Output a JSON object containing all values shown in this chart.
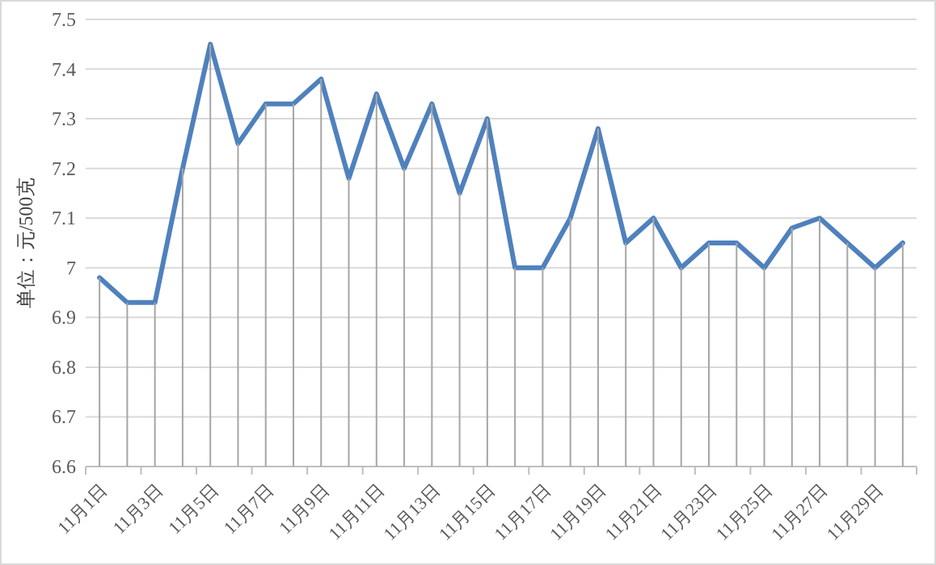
{
  "chart_data": {
    "type": "line",
    "ylabel": "单位：元/500克",
    "categories": [
      "11月1日",
      null,
      "11月3日",
      null,
      "11月5日",
      null,
      "11月7日",
      null,
      "11月9日",
      null,
      "11月11日",
      null,
      "11月13日",
      null,
      "11月15日",
      null,
      "11月17日",
      null,
      "11月19日",
      null,
      "11月21日",
      null,
      "11月23日",
      null,
      "11月25日",
      null,
      "11月27日",
      null,
      "11月29日",
      null
    ],
    "series": [
      {
        "type": "bar",
        "color": "#a6a6a6",
        "values": [
          6.98,
          6.93,
          6.93,
          7.2,
          7.45,
          7.25,
          7.33,
          7.33,
          7.38,
          7.18,
          7.35,
          7.2,
          7.33,
          7.15,
          7.3,
          7.0,
          7.0,
          7.1,
          7.28,
          7.05,
          7.1,
          7.0,
          7.05,
          7.05,
          7.0,
          7.08,
          7.1,
          7.05,
          7.0,
          7.05
        ]
      },
      {
        "color": "#4f81bd",
        "values": [
          6.98,
          6.93,
          6.93,
          7.2,
          7.45,
          7.25,
          7.33,
          7.33,
          7.38,
          7.18,
          7.35,
          7.2,
          7.33,
          7.15,
          7.3,
          7.0,
          7.0,
          7.1,
          7.28,
          7.05,
          7.1,
          7.0,
          7.05,
          7.05,
          7.0,
          7.08,
          7.1,
          7.05,
          7.0,
          7.05
        ]
      }
    ],
    "ylim": [
      6.6,
      7.5
    ],
    "yticks": [
      6.6,
      6.7,
      6.8,
      6.9,
      7,
      7.1,
      7.2,
      7.3,
      7.4,
      7.5
    ],
    "grid": "y",
    "line_style": "solid",
    "marker": "none"
  }
}
